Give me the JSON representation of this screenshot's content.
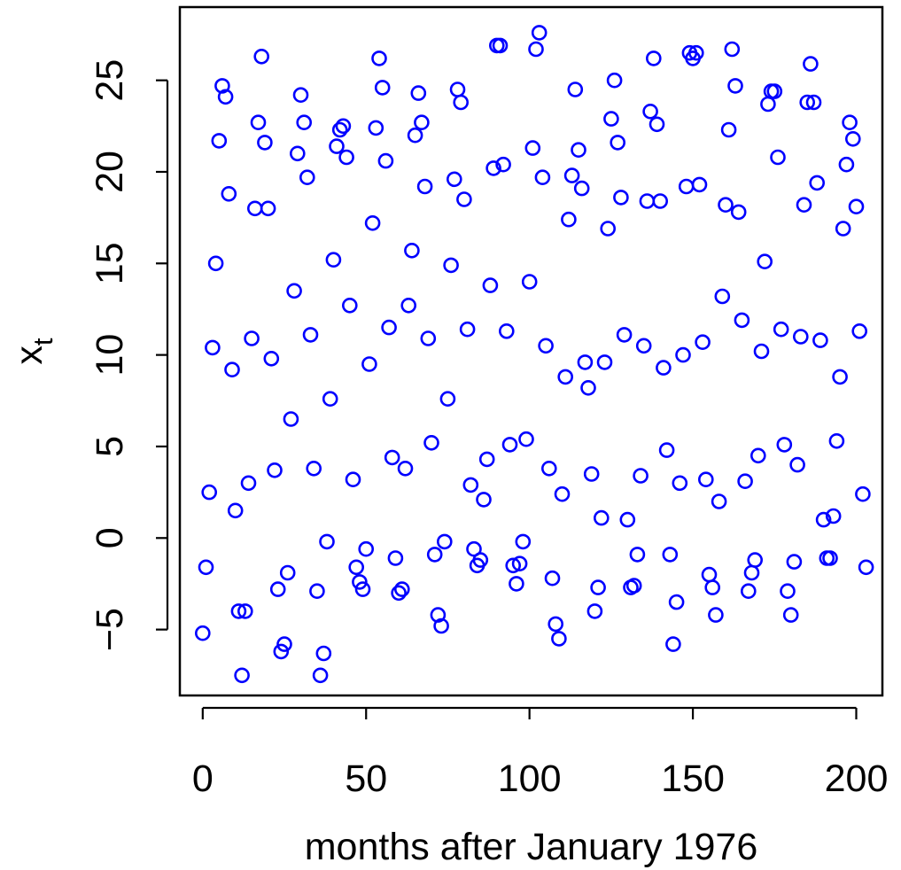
{
  "chart_data": {
    "type": "scatter",
    "title": "",
    "xlabel": "months after January 1976",
    "ylabel_main": "x",
    "ylabel_sub": "t",
    "xlim": [
      -7,
      208
    ],
    "ylim": [
      -8.6,
      29
    ],
    "xticks": [
      0,
      50,
      100,
      150,
      200
    ],
    "xtick_labels": [
      "0",
      "50",
      "100",
      "150",
      "200"
    ],
    "yticks": [
      -5,
      0,
      5,
      10,
      15,
      20,
      25
    ],
    "ytick_labels": [
      "−5",
      "0",
      "5",
      "10",
      "15",
      "20",
      "25"
    ],
    "grid": false,
    "legend": "none",
    "marker": "open-circle",
    "marker_color": "#0000ff",
    "x": [
      0,
      1,
      2,
      3,
      4,
      5,
      6,
      7,
      8,
      9,
      10,
      11,
      12,
      13,
      14,
      15,
      16,
      17,
      18,
      19,
      20,
      21,
      22,
      23,
      24,
      25,
      26,
      27,
      28,
      29,
      30,
      31,
      32,
      33,
      34,
      35,
      36,
      37,
      38,
      39,
      40,
      41,
      42,
      43,
      44,
      45,
      46,
      47,
      48,
      49,
      50,
      51,
      52,
      53,
      54,
      55,
      56,
      57,
      58,
      59,
      60,
      61,
      62,
      63,
      64,
      65,
      66,
      67,
      68,
      69,
      70,
      71,
      72,
      73,
      74,
      75,
      76,
      77,
      78,
      79,
      80,
      81,
      82,
      83,
      84,
      85,
      86,
      87,
      88,
      89,
      90,
      91,
      92,
      93,
      94,
      95,
      96,
      97,
      98,
      99,
      100,
      101,
      102,
      103,
      104,
      105,
      106,
      107,
      108,
      109,
      110,
      111,
      112,
      113,
      114,
      115,
      116,
      117,
      118,
      119,
      120,
      121,
      122,
      123,
      124,
      125,
      126,
      127,
      128,
      129,
      130,
      131,
      132,
      133,
      134,
      135,
      136,
      137,
      138,
      139,
      140,
      141,
      142,
      143,
      144,
      145,
      146,
      147,
      148,
      149,
      150,
      151,
      152,
      153,
      154,
      155,
      156,
      157,
      158,
      159,
      160,
      161,
      162,
      163,
      164,
      165,
      166,
      167,
      168,
      169,
      170,
      171,
      172,
      173,
      174,
      175,
      176,
      177,
      178,
      179,
      180,
      181,
      182,
      183,
      184,
      185,
      186,
      187,
      188,
      189,
      190,
      191,
      192,
      193,
      194,
      195,
      196,
      197,
      198,
      199,
      200,
      201,
      202,
      203
    ],
    "y": [
      -5.2,
      -1.6,
      2.5,
      10.4,
      15.0,
      21.7,
      24.7,
      24.1,
      18.8,
      9.2,
      1.5,
      -4.0,
      -7.5,
      -4.0,
      3.0,
      10.9,
      18.0,
      22.7,
      26.3,
      21.6,
      18.0,
      9.8,
      3.7,
      -2.8,
      -6.2,
      -5.8,
      -1.9,
      6.5,
      13.5,
      21.0,
      24.2,
      22.7,
      19.7,
      11.1,
      3.8,
      -2.9,
      -7.5,
      -6.3,
      -0.2,
      7.6,
      15.2,
      21.4,
      22.3,
      22.5,
      20.8,
      12.7,
      3.2,
      -1.6,
      -2.4,
      -2.8,
      -0.6,
      9.5,
      17.2,
      22.4,
      26.2,
      24.6,
      20.6,
      11.5,
      4.4,
      -1.1,
      -3.0,
      -2.8,
      3.8,
      12.7,
      15.7,
      22.0,
      24.3,
      22.7,
      19.2,
      10.9,
      5.2,
      -0.9,
      -4.2,
      -4.8,
      -0.2,
      7.6,
      14.9,
      19.6,
      24.5,
      23.8,
      18.5,
      11.4,
      2.9,
      -0.6,
      -1.5,
      -1.2,
      2.1,
      4.3,
      13.8,
      20.2,
      26.9,
      26.9,
      20.4,
      11.3,
      5.1,
      -1.5,
      -2.5,
      -1.4,
      -0.2,
      5.4,
      14.0,
      21.3,
      26.7,
      27.6,
      19.7,
      10.5,
      3.8,
      -2.2,
      -4.7,
      -5.5,
      2.4,
      8.8,
      17.4,
      19.8,
      24.5,
      21.2,
      19.1,
      9.6,
      8.2,
      3.5,
      -4.0,
      -2.7,
      1.1,
      9.6,
      16.9,
      22.9,
      25.0,
      21.6,
      18.6,
      11.1,
      1.0,
      -2.7,
      -2.6,
      -0.9,
      3.4,
      10.5,
      18.4,
      23.3,
      26.2,
      22.6,
      18.4,
      9.3,
      4.8,
      -0.9,
      -5.8,
      -3.5,
      3.0,
      10.0,
      19.2,
      26.5,
      26.2,
      26.5,
      19.3,
      10.7,
      3.2,
      -2.0,
      -2.7,
      -4.2,
      2.0,
      13.2,
      18.2,
      22.3,
      26.7,
      24.7,
      17.8,
      11.9,
      3.1,
      -2.9,
      -1.9,
      -1.2,
      4.5,
      10.2,
      15.1,
      23.7,
      24.4,
      24.4,
      20.8,
      11.4,
      5.1,
      -2.9,
      -4.2,
      -1.3,
      4.0,
      11.0,
      18.2,
      23.8,
      25.9,
      23.8,
      19.4,
      10.8,
      1.0,
      -1.1,
      -1.1,
      1.2,
      5.3,
      8.8,
      16.9,
      20.4,
      22.7,
      21.8,
      18.1,
      11.3,
      2.4,
      -1.6
    ]
  }
}
